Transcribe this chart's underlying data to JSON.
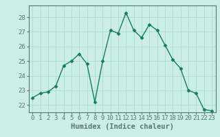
{
  "x": [
    0,
    1,
    2,
    3,
    4,
    5,
    6,
    7,
    8,
    9,
    10,
    11,
    12,
    13,
    14,
    15,
    16,
    17,
    18,
    19,
    20,
    21,
    22,
    23
  ],
  "y": [
    22.5,
    22.8,
    22.9,
    23.3,
    24.7,
    25.0,
    25.5,
    24.8,
    22.2,
    25.0,
    27.1,
    26.9,
    28.3,
    27.1,
    26.6,
    27.5,
    27.1,
    26.1,
    25.1,
    24.5,
    23.0,
    22.8,
    21.7,
    21.6
  ],
  "line_color": "#1a7a5e",
  "marker": "D",
  "markersize": 2.5,
  "linewidth": 1.0,
  "bg_color": "#cceee8",
  "grid_color": "#aaddcc",
  "xlabel": "Humidex (Indice chaleur)",
  "xlim": [
    -0.5,
    23.5
  ],
  "ylim": [
    21.5,
    28.8
  ],
  "yticks": [
    22,
    23,
    24,
    25,
    26,
    27,
    28
  ],
  "xticks": [
    0,
    1,
    2,
    3,
    4,
    5,
    6,
    7,
    8,
    9,
    10,
    11,
    12,
    13,
    14,
    15,
    16,
    17,
    18,
    19,
    20,
    21,
    22,
    23
  ],
  "tick_fontsize": 6.5,
  "xlabel_fontsize": 7.5,
  "spine_color": "#557777",
  "axis_color": "#557777"
}
